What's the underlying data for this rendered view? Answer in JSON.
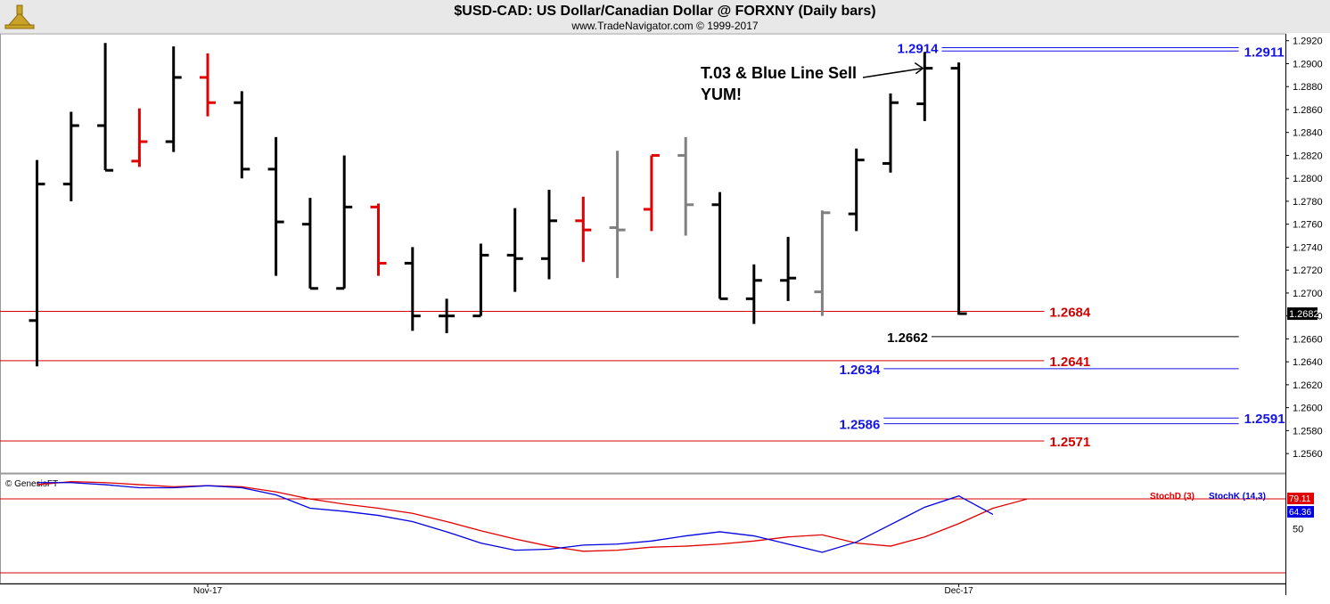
{
  "header": {
    "title": "$USD-CAD:  US Dollar/Canadian Dollar @ FORXNY  (Daily bars)",
    "subtitle": "www.TradeNavigator.com © 1999-2017"
  },
  "chart_data": [
    {
      "type": "ohlc",
      "title": "$USD-CAD:  US Dollar/Canadian Dollar @ FORXNY  (Daily bars)",
      "x_ticks": [
        {
          "label": "Nov-17",
          "bar_index": 5
        },
        {
          "label": "Dec-17",
          "bar_index": 27
        }
      ],
      "y_ticks": [
        1.256,
        1.258,
        1.26,
        1.262,
        1.264,
        1.266,
        1.268,
        1.27,
        1.272,
        1.274,
        1.276,
        1.278,
        1.28,
        1.282,
        1.284,
        1.286,
        1.288,
        1.29,
        1.292
      ],
      "ylim": [
        1.2543,
        1.2926
      ],
      "last_price": "1.2682",
      "bars": [
        {
          "o": 1.2676,
          "h": 1.2816,
          "l": 1.2636,
          "c": 1.2795,
          "color": "#000000"
        },
        {
          "o": 1.2795,
          "h": 1.2858,
          "l": 1.278,
          "c": 1.2846,
          "color": "#000000"
        },
        {
          "o": 1.2846,
          "h": 1.2918,
          "l": 1.2807,
          "c": 1.2807,
          "color": "#000000"
        },
        {
          "o": 1.2815,
          "h": 1.2861,
          "l": 1.281,
          "c": 1.2832,
          "color": "#e00000"
        },
        {
          "o": 1.2832,
          "h": 1.2915,
          "l": 1.2823,
          "c": 1.2888,
          "color": "#000000"
        },
        {
          "o": 1.2888,
          "h": 1.2909,
          "l": 1.2854,
          "c": 1.2866,
          "color": "#e00000"
        },
        {
          "o": 1.2866,
          "h": 1.2876,
          "l": 1.28,
          "c": 1.2808,
          "color": "#000000"
        },
        {
          "o": 1.2808,
          "h": 1.2836,
          "l": 1.2715,
          "c": 1.2762,
          "color": "#000000"
        },
        {
          "o": 1.276,
          "h": 1.2783,
          "l": 1.2704,
          "c": 1.2704,
          "color": "#000000"
        },
        {
          "o": 1.2704,
          "h": 1.282,
          "l": 1.2704,
          "c": 1.2775,
          "color": "#000000"
        },
        {
          "o": 1.2775,
          "h": 1.2778,
          "l": 1.2715,
          "c": 1.2726,
          "color": "#e00000"
        },
        {
          "o": 1.2726,
          "h": 1.274,
          "l": 1.2667,
          "c": 1.268,
          "color": "#000000"
        },
        {
          "o": 1.268,
          "h": 1.2695,
          "l": 1.2665,
          "c": 1.268,
          "color": "#000000"
        },
        {
          "o": 1.268,
          "h": 1.2743,
          "l": 1.268,
          "c": 1.2733,
          "color": "#000000"
        },
        {
          "o": 1.2733,
          "h": 1.2774,
          "l": 1.2701,
          "c": 1.273,
          "color": "#000000"
        },
        {
          "o": 1.273,
          "h": 1.279,
          "l": 1.2712,
          "c": 1.2763,
          "color": "#000000"
        },
        {
          "o": 1.2763,
          "h": 1.2784,
          "l": 1.2727,
          "c": 1.2755,
          "color": "#e00000"
        },
        {
          "o": 1.2757,
          "h": 1.2824,
          "l": 1.2713,
          "c": 1.2755,
          "color": "#808080"
        },
        {
          "o": 1.2773,
          "h": 1.282,
          "l": 1.2754,
          "c": 1.282,
          "color": "#e00000"
        },
        {
          "o": 1.282,
          "h": 1.2836,
          "l": 1.275,
          "c": 1.2777,
          "color": "#808080"
        },
        {
          "o": 1.2777,
          "h": 1.2788,
          "l": 1.2695,
          "c": 1.2695,
          "color": "#000000"
        },
        {
          "o": 1.2695,
          "h": 1.2725,
          "l": 1.2673,
          "c": 1.2711,
          "color": "#000000"
        },
        {
          "o": 1.2711,
          "h": 1.2749,
          "l": 1.2693,
          "c": 1.2713,
          "color": "#000000"
        },
        {
          "o": 1.2701,
          "h": 1.2772,
          "l": 1.268,
          "c": 1.277,
          "color": "#808080"
        },
        {
          "o": 1.2769,
          "h": 1.2826,
          "l": 1.2754,
          "c": 1.2816,
          "color": "#000000"
        },
        {
          "o": 1.2813,
          "h": 1.2874,
          "l": 1.2805,
          "c": 1.2866,
          "color": "#000000"
        },
        {
          "o": 1.2865,
          "h": 1.291,
          "l": 1.285,
          "c": 1.2896,
          "color": "#000000"
        },
        {
          "o": 1.2896,
          "h": 1.2901,
          "l": 1.2681,
          "c": 1.2682,
          "color": "#000000"
        }
      ],
      "levels": [
        {
          "value": 1.2914,
          "label": "1.2914",
          "color": "#1414e6",
          "label_side": "left",
          "from_bar": 26.5,
          "to_bar": 35.2
        },
        {
          "value": 1.2911,
          "label": "1.2911",
          "color": "#1414e6",
          "label_side": "right",
          "from_bar": 26.5,
          "to_bar": 35.2
        },
        {
          "value": 1.2684,
          "label": "1.2684",
          "color": "#d40000",
          "label_side": "right",
          "from_bar": -1.5,
          "to_bar": 29.5
        },
        {
          "value": 1.2662,
          "label": "1.2662",
          "color": "#000000",
          "label_side": "left",
          "from_bar": 26.2,
          "to_bar": 35.2
        },
        {
          "value": 1.2641,
          "label": "1.2641",
          "color": "#d40000",
          "label_side": "right",
          "from_bar": -1.5,
          "to_bar": 29.5
        },
        {
          "value": 1.2634,
          "label": "1.2634",
          "color": "#1414e6",
          "label_side": "left",
          "from_bar": 24.8,
          "to_bar": 35.2
        },
        {
          "value": 1.2591,
          "label": "1.2591",
          "color": "#1414e6",
          "label_side": "right",
          "from_bar": 24.8,
          "to_bar": 35.2
        },
        {
          "value": 1.2586,
          "label": "1.2586",
          "color": "#1414e6",
          "label_side": "left",
          "from_bar": 24.8,
          "to_bar": 35.2
        },
        {
          "value": 1.2571,
          "label": "1.2571",
          "color": "#d40000",
          "label_side": "right",
          "from_bar": -1.5,
          "to_bar": 29.5
        }
      ],
      "annotation": {
        "lines": [
          "T.03 & Blue Line Sell",
          "YUM!"
        ],
        "arrow_to_bar": 26,
        "arrow_to_value": 1.2896
      }
    },
    {
      "type": "line",
      "title": "",
      "source_label": "© GenesisFT",
      "ylim": [
        0,
        100
      ],
      "y_ticks": [
        50
      ],
      "reference_level": 79.11,
      "series": [
        {
          "name": "StochD (3)",
          "color": "#e00000",
          "last_value": "79.11",
          "values": [
            93,
            96,
            95,
            93,
            91,
            92,
            91,
            86,
            79,
            74,
            70,
            65,
            57,
            48,
            40,
            33,
            28,
            29,
            32,
            33,
            35,
            38,
            42,
            44,
            36,
            33,
            42,
            55,
            70,
            79
          ]
        },
        {
          "name": "StochK (14,3)",
          "color": "#0000e0",
          "last_value": "64.36",
          "values": [
            95,
            95,
            93,
            90,
            90,
            92,
            90,
            83,
            70,
            67,
            63,
            57,
            47,
            36,
            29,
            30,
            34,
            35,
            38,
            43,
            47,
            43,
            35,
            27,
            37,
            54,
            71,
            82,
            64
          ]
        }
      ]
    }
  ]
}
